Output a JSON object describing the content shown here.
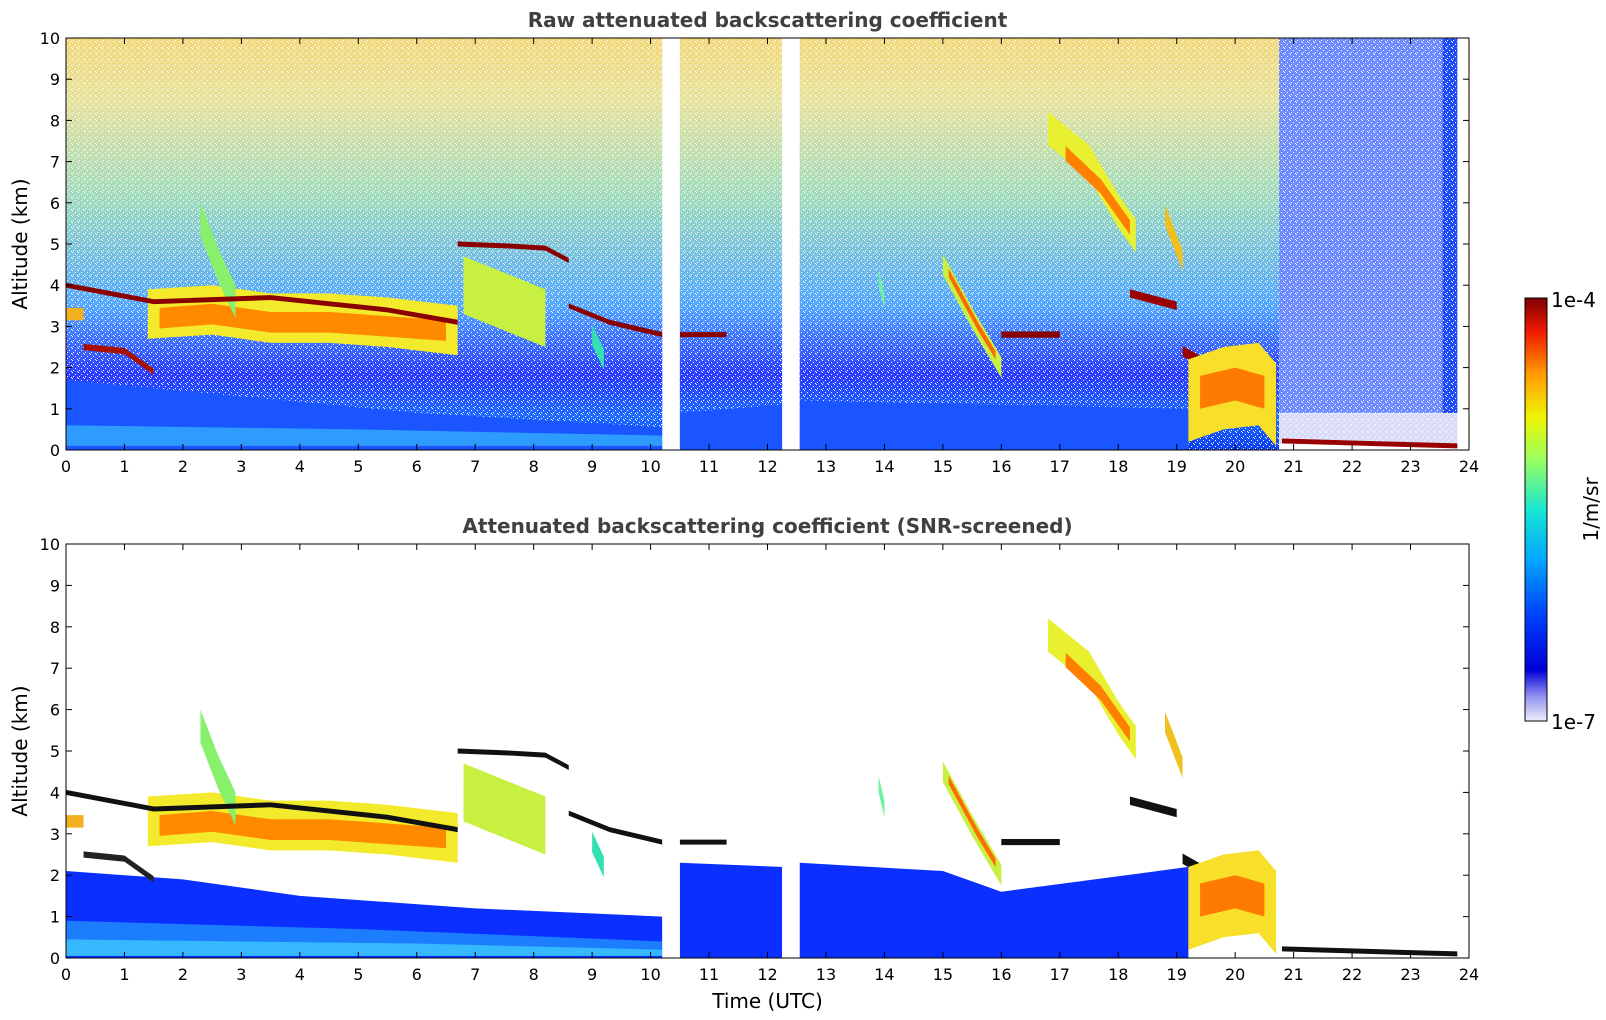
{
  "chart_data": [
    {
      "type": "heatmap",
      "title": "Raw attenuated backscattering coefficient",
      "xlabel": "",
      "ylabel": "Altitude (km)",
      "xlim": [
        0,
        24
      ],
      "ylim": [
        0,
        10
      ],
      "xticks": [
        0,
        1,
        2,
        3,
        4,
        5,
        6,
        7,
        8,
        9,
        10,
        11,
        12,
        13,
        14,
        15,
        16,
        17,
        18,
        19,
        20,
        21,
        22,
        23,
        24
      ],
      "yticks": [
        0,
        1,
        2,
        3,
        4,
        5,
        6,
        7,
        8,
        9,
        10
      ],
      "data_gaps_utc": [
        [
          10.2,
          10.5
        ],
        [
          12.25,
          12.55
        ]
      ],
      "features": [
        {
          "name": "cloud layer",
          "t": [
            0,
            10.2
          ],
          "alt_km": [
            4.0,
            2.8
          ]
        },
        {
          "name": "cloud layer",
          "t": [
            6.7,
            8.6
          ],
          "alt_km": [
            5.0,
            4.6
          ]
        },
        {
          "name": "cirrus",
          "t": [
            16.7,
            18.9
          ],
          "alt_km": [
            8.2,
            4.4
          ]
        },
        {
          "name": "low cloud base",
          "t": [
            20.7,
            23.8
          ],
          "alt_km": [
            0.2,
            0.1
          ]
        }
      ]
    },
    {
      "type": "heatmap",
      "title": "Attenuated backscattering coefficient (SNR-screened)",
      "xlabel": "Time (UTC)",
      "ylabel": "Altitude (km)",
      "xlim": [
        0,
        24
      ],
      "ylim": [
        0,
        10
      ],
      "xticks": [
        0,
        1,
        2,
        3,
        4,
        5,
        6,
        7,
        8,
        9,
        10,
        11,
        12,
        13,
        14,
        15,
        16,
        17,
        18,
        19,
        20,
        21,
        22,
        23,
        24
      ],
      "yticks": [
        0,
        1,
        2,
        3,
        4,
        5,
        6,
        7,
        8,
        9,
        10
      ]
    }
  ],
  "colorbar": {
    "label": "1/m/sr",
    "min_label": "1e-7",
    "max_label": "1e-4",
    "scale": "log",
    "colormap": "jet"
  }
}
